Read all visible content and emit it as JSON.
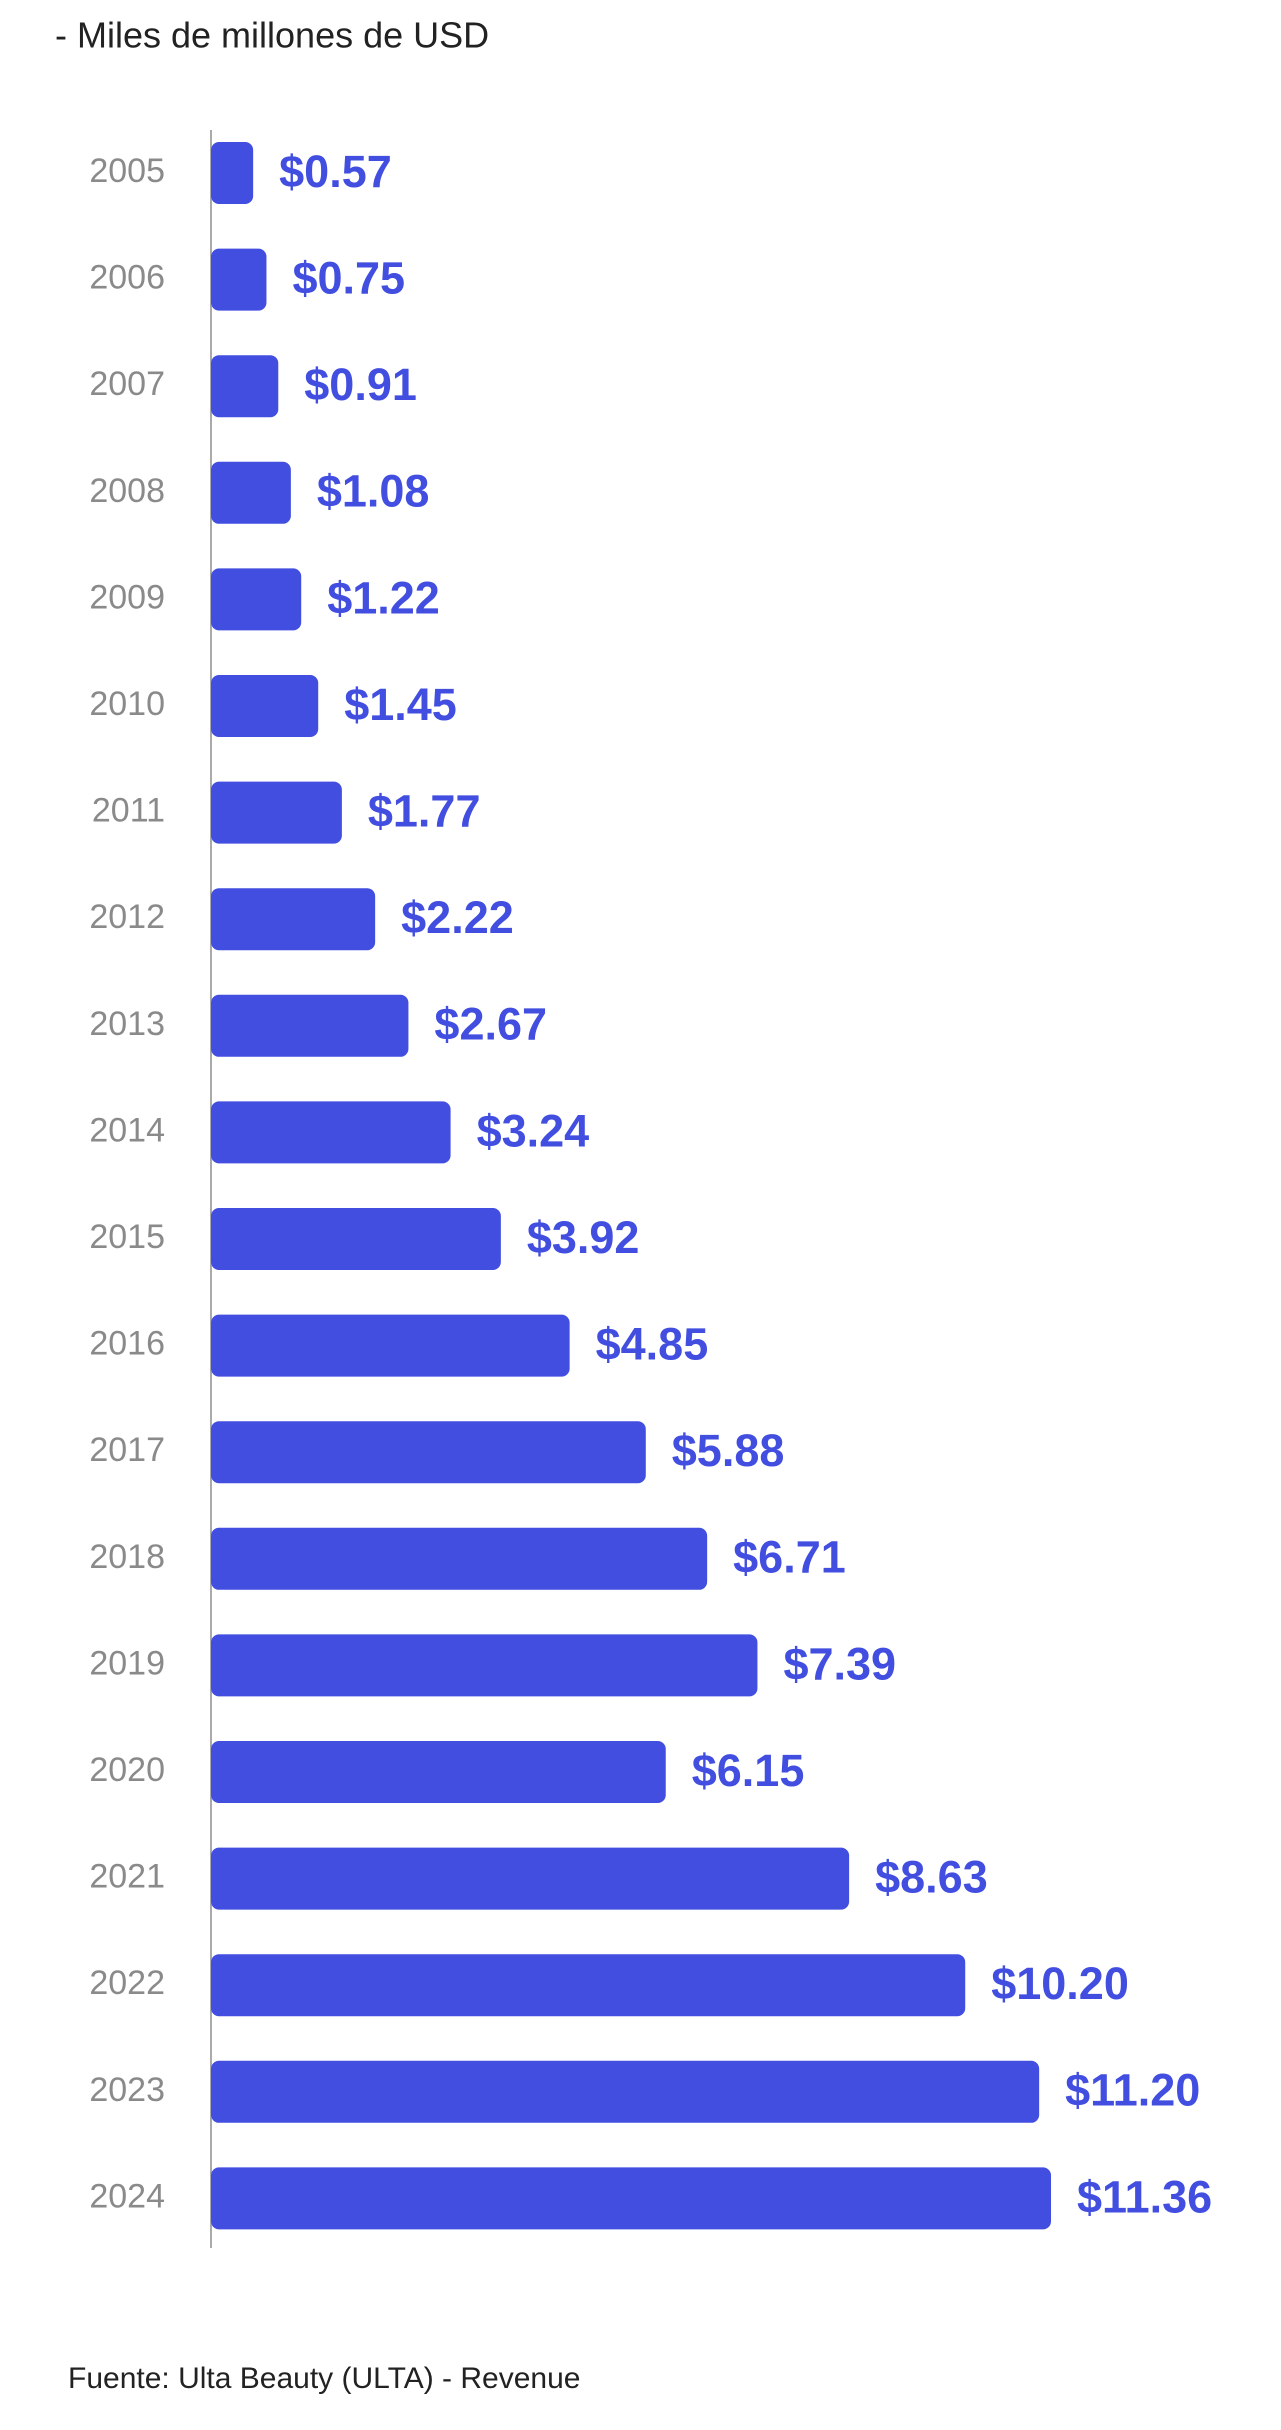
{
  "chart_data": {
    "type": "bar",
    "orientation": "horizontal",
    "subtitle": "-  Miles de millones de USD",
    "source": "Fuente: Ulta Beauty (ULTA) - Revenue",
    "categories": [
      "2005",
      "2006",
      "2007",
      "2008",
      "2009",
      "2010",
      "2011",
      "2012",
      "2013",
      "2014",
      "2015",
      "2016",
      "2017",
      "2018",
      "2019",
      "2020",
      "2021",
      "2022",
      "2023",
      "2024"
    ],
    "values": [
      0.57,
      0.75,
      0.91,
      1.08,
      1.22,
      1.45,
      1.77,
      2.22,
      2.67,
      3.24,
      3.92,
      4.85,
      5.88,
      6.71,
      7.39,
      6.15,
      8.63,
      10.2,
      11.2,
      11.36
    ],
    "value_labels": [
      "$0.57",
      "$0.75",
      "$0.91",
      "$1.08",
      "$1.22",
      "$1.45",
      "$1.77",
      "$2.22",
      "$2.67",
      "$3.24",
      "$3.92",
      "$4.85",
      "$5.88",
      "$6.71",
      "$7.39",
      "$6.15",
      "$8.63",
      "$10.20",
      "$11.20",
      "$11.36"
    ],
    "color": "#414ee0"
  }
}
